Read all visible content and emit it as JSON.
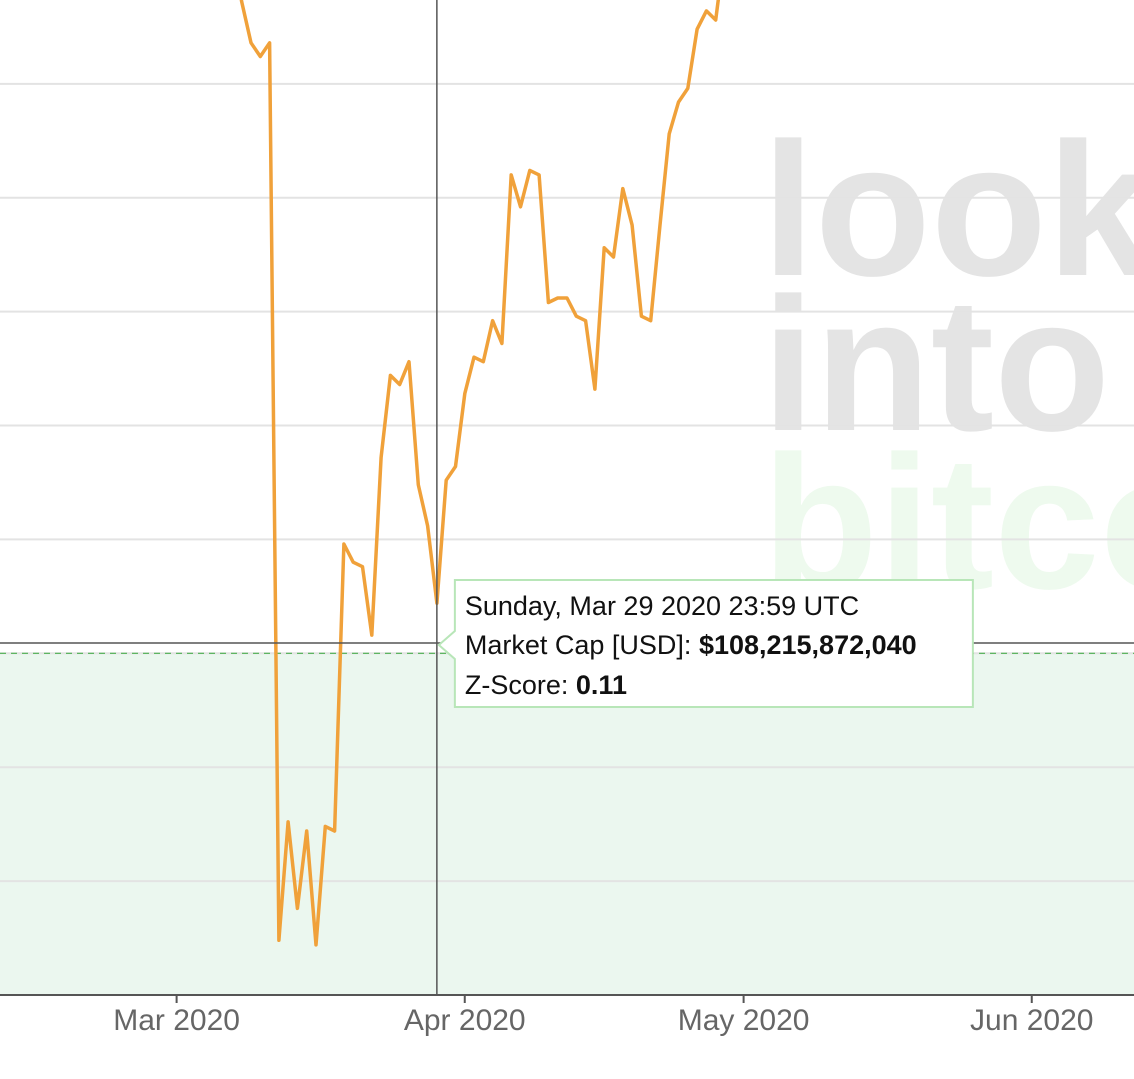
{
  "chart_data": {
    "type": "line",
    "x": [
      "2020-03-07",
      "2020-03-08",
      "2020-03-09",
      "2020-03-10",
      "2020-03-11",
      "2020-03-12",
      "2020-03-13",
      "2020-03-14",
      "2020-03-15",
      "2020-03-16",
      "2020-03-17",
      "2020-03-18",
      "2020-03-19",
      "2020-03-20",
      "2020-03-21",
      "2020-03-22",
      "2020-03-23",
      "2020-03-24",
      "2020-03-25",
      "2020-03-26",
      "2020-03-27",
      "2020-03-28",
      "2020-03-29",
      "2020-03-30",
      "2020-03-31",
      "2020-04-01",
      "2020-04-02",
      "2020-04-03",
      "2020-04-04",
      "2020-04-05",
      "2020-04-06",
      "2020-04-07",
      "2020-04-08",
      "2020-04-09",
      "2020-04-10",
      "2020-04-11",
      "2020-04-12",
      "2020-04-13",
      "2020-04-14",
      "2020-04-15",
      "2020-04-16",
      "2020-04-17",
      "2020-04-18",
      "2020-04-19",
      "2020-04-20",
      "2020-04-21",
      "2020-04-22",
      "2020-04-23",
      "2020-04-24",
      "2020-04-25",
      "2020-04-26",
      "2020-04-27",
      "2020-04-28",
      "2020-04-29"
    ],
    "series": [
      {
        "name": "Z-Score",
        "color": "#f0a13a",
        "values": [
          1.55,
          1.43,
          1.34,
          1.31,
          1.34,
          -0.63,
          -0.37,
          -0.56,
          -0.39,
          -0.64,
          -0.38,
          -0.39,
          0.24,
          0.2,
          0.19,
          0.04,
          0.43,
          0.61,
          0.59,
          0.64,
          0.37,
          0.28,
          0.11,
          0.38,
          0.41,
          0.57,
          0.65,
          0.64,
          0.73,
          0.68,
          1.05,
          0.98,
          1.06,
          1.05,
          0.77,
          0.78,
          0.78,
          0.74,
          0.73,
          0.58,
          0.89,
          0.87,
          1.02,
          0.94,
          0.74,
          0.73,
          0.94,
          1.14,
          1.21,
          1.24,
          1.37,
          1.41,
          1.39,
          1.55
        ]
      }
    ],
    "xlim": [
      "2020-02-11",
      "2020-06-12"
    ],
    "xticks": [
      {
        "value": "2020-03-01",
        "label": "Mar 2020"
      },
      {
        "value": "2020-04-01",
        "label": "Apr 2020"
      },
      {
        "value": "2020-05-01",
        "label": "May 2020"
      },
      {
        "value": "2020-06-01",
        "label": "Jun 2020"
      }
    ],
    "ylim": [
      -0.75,
      1.434
    ],
    "yticks": [
      -0.5,
      -0.25,
      0,
      0.25,
      0.5,
      0.75,
      1,
      1.25
    ],
    "grid": true,
    "green_zone_below": 0,
    "watermark": [
      "look",
      "into",
      "bitco"
    ],
    "tooltip": {
      "date": "Sunday, Mar 29 2020 23:59 UTC",
      "market_cap_label": "Market Cap [USD]:",
      "market_cap": "$108,215,872,040",
      "z_label": "Z-Score:"
    }
  }
}
